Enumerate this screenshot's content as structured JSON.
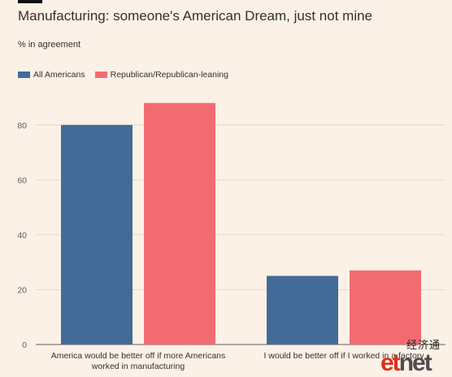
{
  "title": "Manufacturing: someone's American Dream, just not mine",
  "subtitle": "% in agreement",
  "watermark": {
    "cn": "经济通",
    "brand_et": "et",
    "brand_net": "net"
  },
  "chart_data": {
    "type": "bar",
    "categories": [
      [
        "America would be better off if more Americans",
        "worked in manufacturing"
      ],
      [
        "I would be better off if I worked in a factory"
      ]
    ],
    "series": [
      {
        "name": "All Americans",
        "color": "#436b97",
        "values": [
          80,
          25
        ]
      },
      {
        "name": "Republican/Republican-leaning",
        "color": "#f26b71",
        "values": [
          88,
          27
        ]
      }
    ],
    "yticks": [
      0,
      20,
      40,
      60,
      80
    ],
    "ylim": [
      0,
      90
    ],
    "grid": true,
    "legend_position": "top-left"
  }
}
